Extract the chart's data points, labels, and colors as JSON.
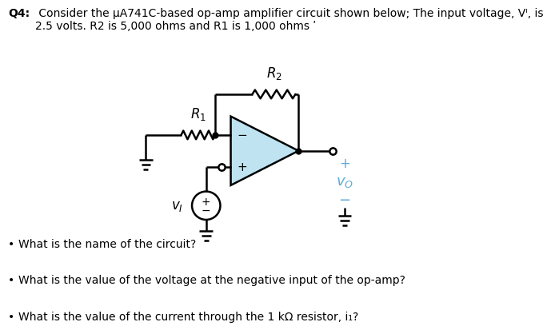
{
  "title_bold": "Q4:",
  "title_text": " Consider the μA741C-based op-amp amplifier circuit shown below; The input voltage, Vᴵ, is\n2.5 volts. R2 is 5,000 ohms and R1 is 1,000 ohms ʹ",
  "bullet1": "What is the name of the circuit?",
  "bullet2": "What is the value of the voltage at the negative input of the op-amp?",
  "bullet3": "What is the value of the current through the 1 kΩ resistor, i₁?",
  "bg_color": "#ffffff",
  "opamp_fill": "#bfe3f0",
  "wire_color": "#000000",
  "text_color": "#000000",
  "label_color": "#5bacd4",
  "font_size": 10,
  "lw": 1.8
}
